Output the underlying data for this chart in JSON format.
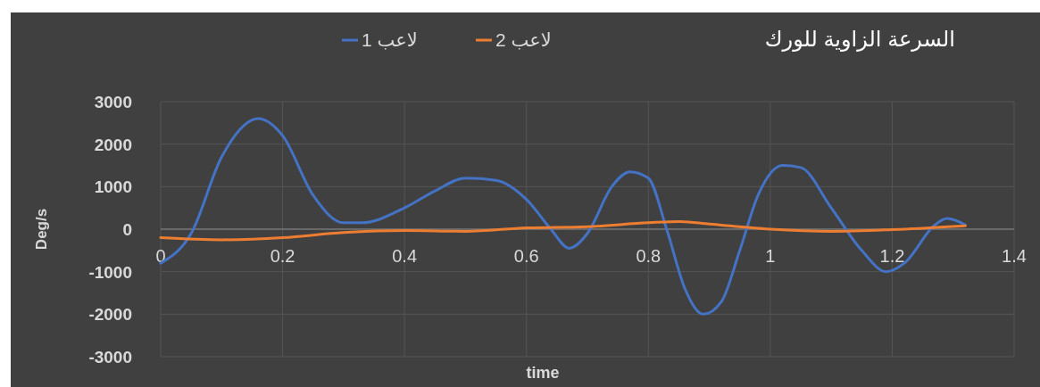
{
  "chart_data": {
    "type": "line",
    "title": "السرعة الزاوية للورك",
    "xlabel": "time",
    "ylabel": "Deg/s",
    "xlim": [
      0,
      1.4
    ],
    "xticks": [
      0,
      0.2,
      0.4,
      0.6,
      0.8,
      1,
      1.2,
      1.4
    ],
    "ylim": [
      -3000,
      3000
    ],
    "yticks": [
      -3000,
      -2000,
      -1000,
      0,
      1000,
      2000,
      3000
    ],
    "grid": true,
    "legend": "top",
    "series": [
      {
        "name": "لاعب 1",
        "color": "#4472c4",
        "x": [
          0,
          0.05,
          0.1,
          0.16,
          0.2,
          0.25,
          0.3,
          0.33,
          0.4,
          0.45,
          0.5,
          0.55,
          0.6,
          0.64,
          0.67,
          0.7,
          0.74,
          0.77,
          0.8,
          0.83,
          0.86,
          0.89,
          0.92,
          0.95,
          0.98,
          1.02,
          1.05,
          1.1,
          1.15,
          1.19,
          1.22,
          1.27,
          1.29,
          1.32
        ],
        "values": [
          -800,
          -100,
          1700,
          2600,
          2200,
          800,
          150,
          150,
          500,
          900,
          1200,
          1150,
          700,
          0,
          -450,
          -100,
          1000,
          1350,
          1200,
          0,
          -1400,
          -2000,
          -1700,
          -500,
          800,
          1500,
          1450,
          500,
          -500,
          -1000,
          -800,
          100,
          250,
          100
        ]
      },
      {
        "name": "لاعب 2",
        "color": "#ed7d31",
        "x": [
          0,
          0.1,
          0.2,
          0.3,
          0.4,
          0.5,
          0.6,
          0.7,
          0.8,
          0.85,
          0.9,
          1,
          1.1,
          1.2,
          1.32
        ],
        "values": [
          -200,
          -250,
          -200,
          -80,
          -30,
          -50,
          30,
          60,
          150,
          180,
          120,
          0,
          -50,
          -10,
          80
        ]
      }
    ]
  }
}
